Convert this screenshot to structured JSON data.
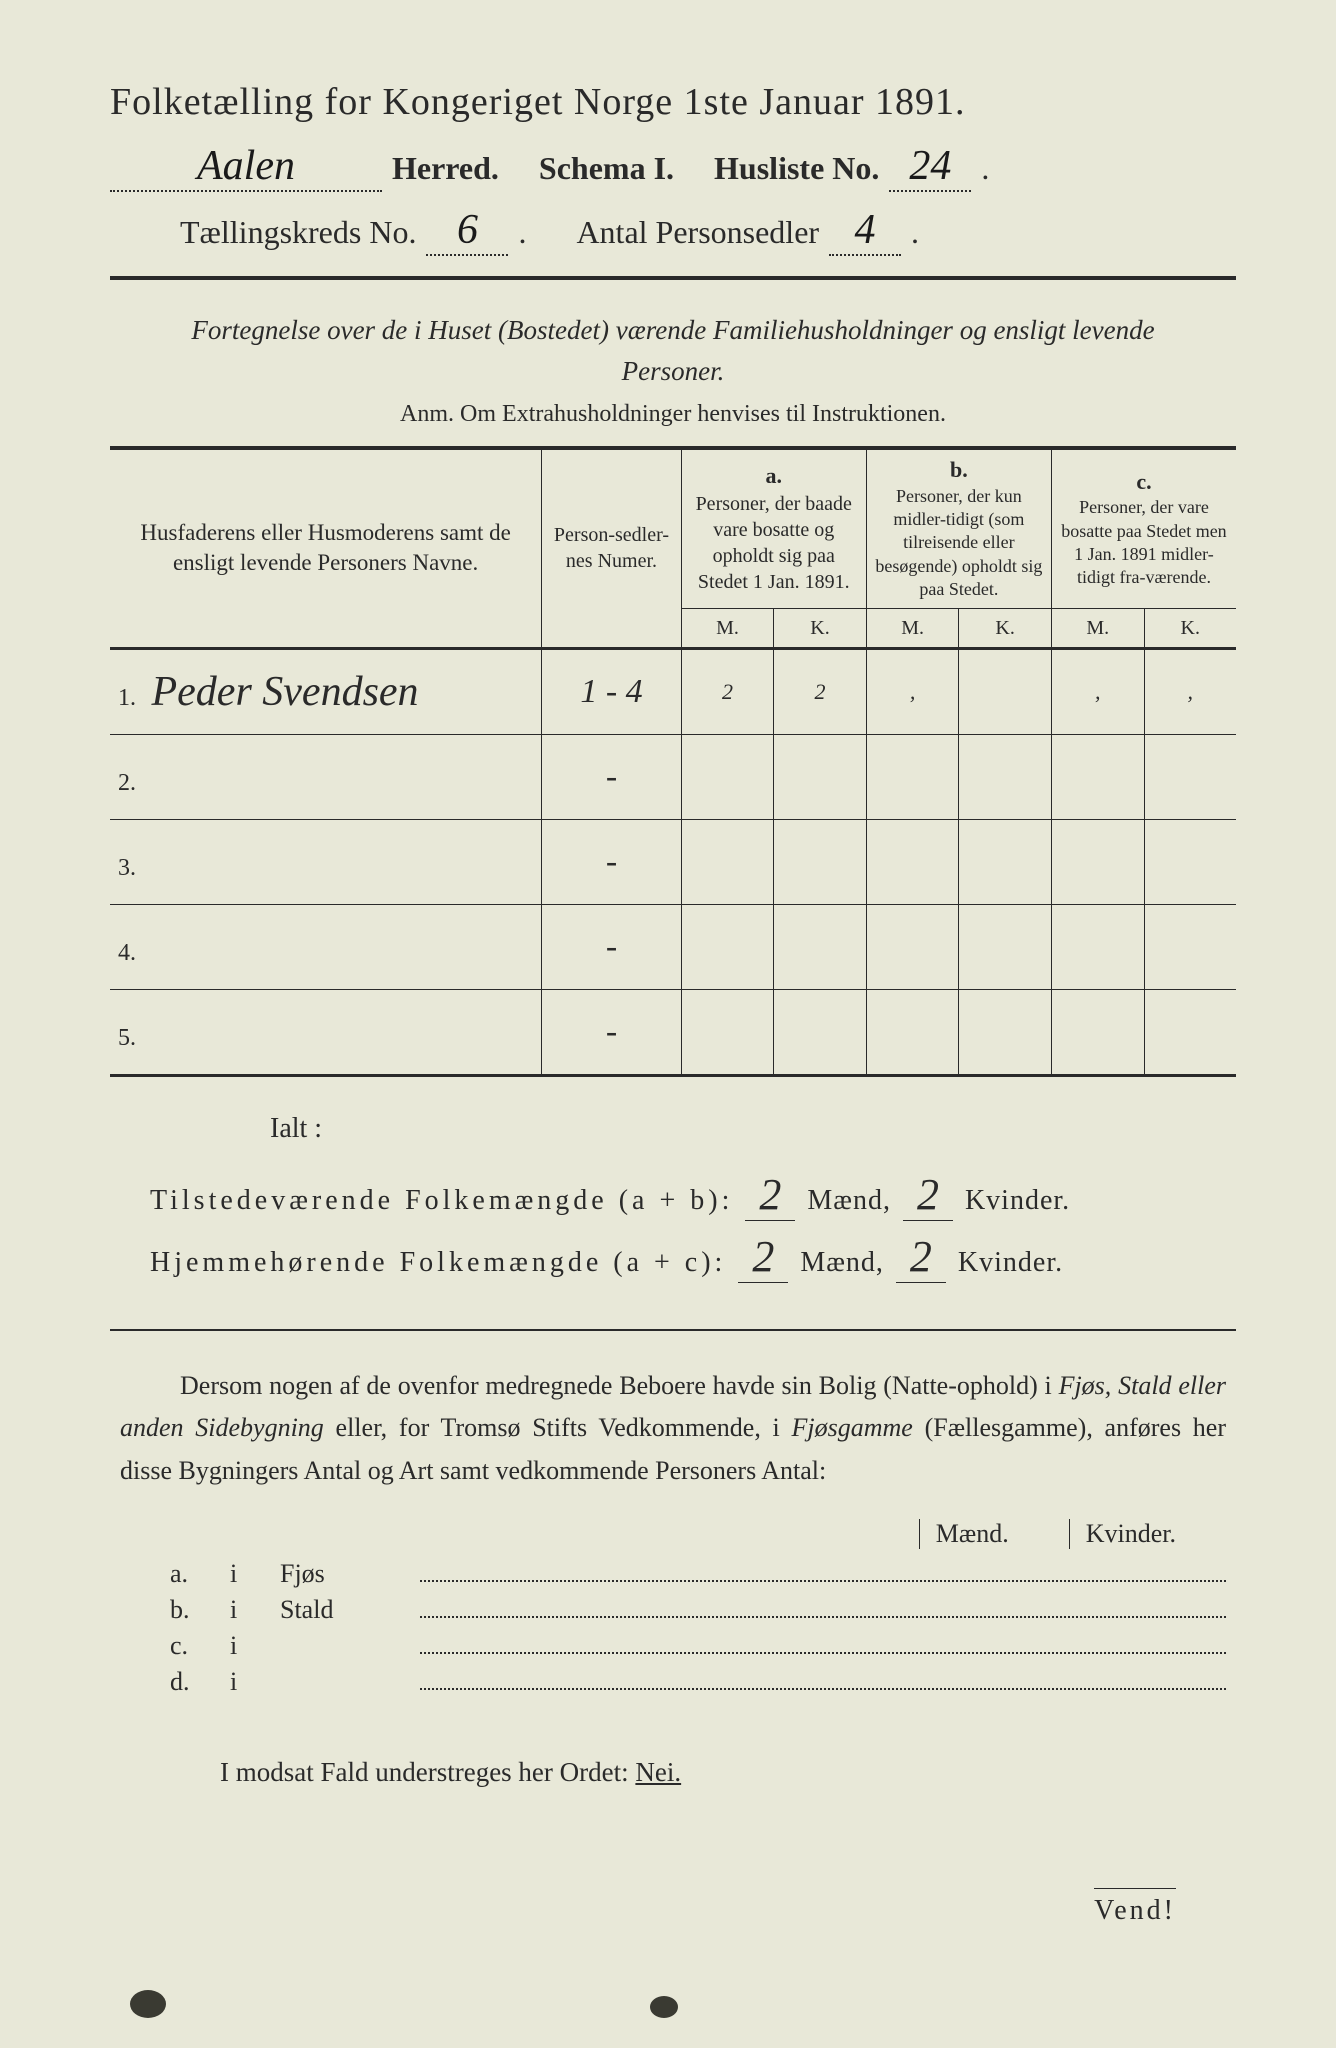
{
  "page_bg": "#e8e8d8",
  "text_color": "#2a2a2a",
  "title": "Folketælling for Kongeriget Norge 1ste Januar 1891.",
  "header": {
    "herred_value": "Aalen",
    "herred_label": "Herred.",
    "schema_label": "Schema I.",
    "husliste_label": "Husliste No.",
    "husliste_value": "24",
    "kreds_label": "Tællingskreds No.",
    "kreds_value": "6",
    "antal_label": "Antal Personsedler",
    "antal_value": "4"
  },
  "subtitle": "Fortegnelse over de i Huset (Bostedet) værende Familiehusholdninger og ensligt levende Personer.",
  "anm": "Anm.  Om Extrahusholdninger henvises til Instruktionen.",
  "table": {
    "col1": "Husfaderens eller Husmoderens samt de ensligt levende Personers Navne.",
    "col2": "Person-sedler-nes Numer.",
    "a_letter": "a.",
    "a_text": "Personer, der baade vare bosatte og opholdt sig paa Stedet 1 Jan. 1891.",
    "b_letter": "b.",
    "b_text": "Personer, der kun midler-tidigt (som tilreisende eller besøgende) opholdt sig paa Stedet.",
    "c_letter": "c.",
    "c_text": "Personer, der vare bosatte paa Stedet men 1 Jan. 1891 midler-tidigt fra-værende.",
    "M": "M.",
    "K": "K.",
    "rows": [
      {
        "n": "1.",
        "name": "Peder Svendsen",
        "num": "1 - 4",
        "aM": "2",
        "aK": "2",
        "bM": ",",
        "bK": "",
        "cM": ",",
        "cK": ","
      },
      {
        "n": "2.",
        "name": "",
        "num": "-",
        "aM": "",
        "aK": "",
        "bM": "",
        "bK": "",
        "cM": "",
        "cK": ""
      },
      {
        "n": "3.",
        "name": "",
        "num": "-",
        "aM": "",
        "aK": "",
        "bM": "",
        "bK": "",
        "cM": "",
        "cK": ""
      },
      {
        "n": "4.",
        "name": "",
        "num": "-",
        "aM": "",
        "aK": "",
        "bM": "",
        "bK": "",
        "cM": "",
        "cK": ""
      },
      {
        "n": "5.",
        "name": "",
        "num": "-",
        "aM": "",
        "aK": "",
        "bM": "",
        "bK": "",
        "cM": "",
        "cK": ""
      }
    ]
  },
  "ialt": "Ialt :",
  "totals": {
    "ab_label": "Tilstedeværende Folkemængde (a + b):",
    "ab_m": "2",
    "ab_k": "2",
    "ac_label": "Hjemmehørende Folkemængde (a + c):",
    "ac_m": "2",
    "ac_k": "2",
    "maend": "Mænd,",
    "kvinder": "Kvinder."
  },
  "paragraph": {
    "p1a": "Dersom nogen af de ovenfor medregnede Beboere havde sin Bolig (Natte-ophold) i ",
    "p1b": "Fjøs, Stald eller anden Sidebygning",
    "p1c": " eller, for Tromsø Stifts Vedkommende, i ",
    "p1d": "Fjøsgamme",
    "p1e": " (Fællesgamme), anføres her disse Bygningers Antal og Art samt vedkommende Personers Antal:"
  },
  "mk": {
    "m": "Mænd.",
    "k": "Kvinder."
  },
  "buildings": [
    {
      "l": "a.",
      "i": "i",
      "n": "Fjøs"
    },
    {
      "l": "b.",
      "i": "i",
      "n": "Stald"
    },
    {
      "l": "c.",
      "i": "i",
      "n": ""
    },
    {
      "l": "d.",
      "i": "i",
      "n": ""
    }
  ],
  "modsat": {
    "pre": "I modsat Fald understreges her Ordet: ",
    "nei": "Nei."
  },
  "vend": "Vend!"
}
